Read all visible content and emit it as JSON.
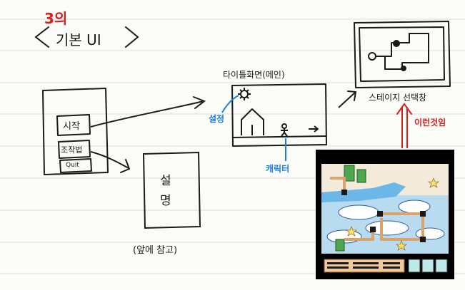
{
  "header": {
    "lecture_number": "3의",
    "title": "기본 UI"
  },
  "title_screen": {
    "caption": "타이틀화면(메인)",
    "start_button": "시작",
    "controls_button": "조작법",
    "quit_button": "Quit",
    "note_callout": "설정",
    "character_callout": "캐릭터"
  },
  "instructions_screen": {
    "content": "설명",
    "caption": "(앞에 참고)"
  },
  "stage_select": {
    "caption": "스테이지 선택창",
    "note": "이런것임"
  },
  "colors": {
    "ink": "#1a1a1a",
    "accent_red": "#d42020",
    "accent_blue": "#1a7fe0",
    "rule_line": "#dcdcdc"
  }
}
